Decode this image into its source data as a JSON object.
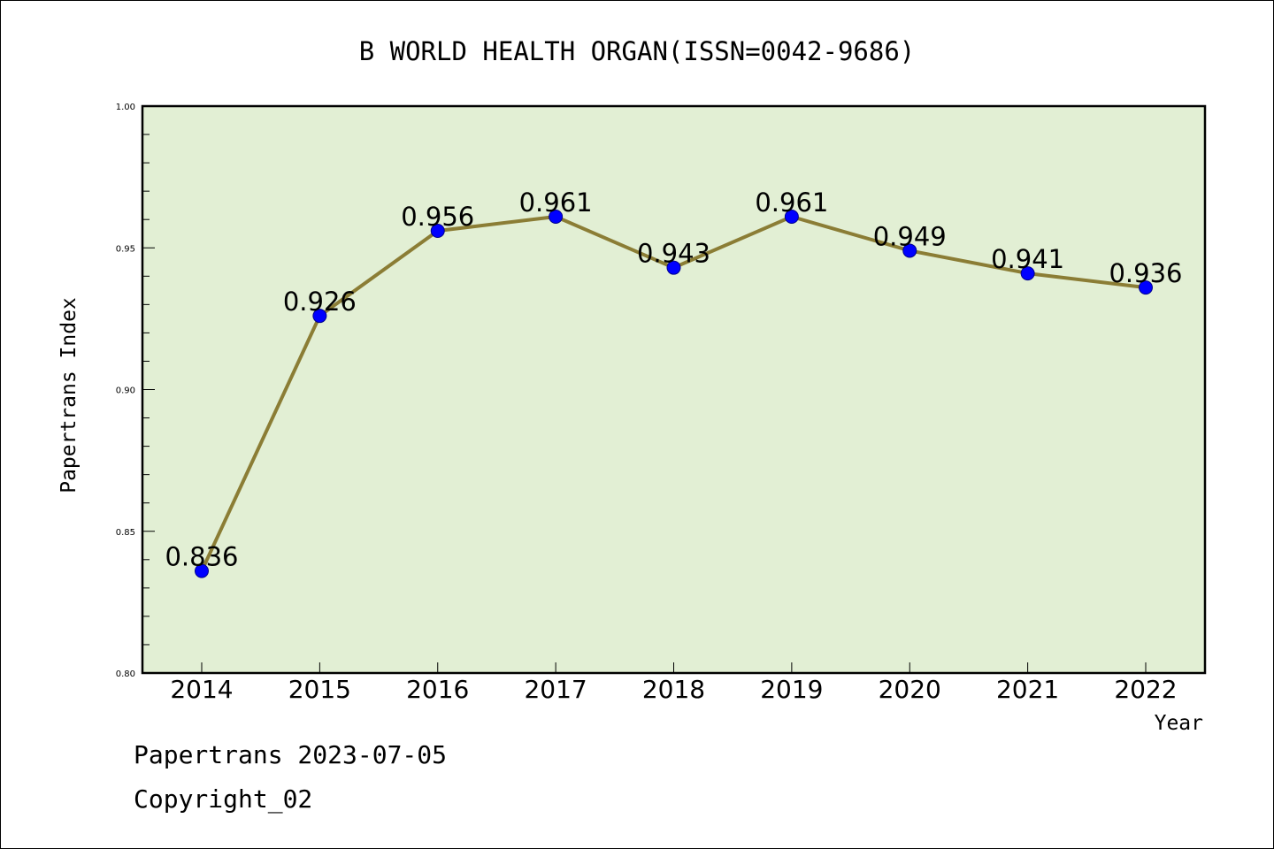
{
  "chart_data": {
    "type": "line",
    "title": "B WORLD HEALTH ORGAN(ISSN=0042-9686)",
    "xlabel": "Year",
    "ylabel": "Papertrans Index",
    "categories": [
      "2014",
      "2015",
      "2016",
      "2017",
      "2018",
      "2019",
      "2020",
      "2021",
      "2022"
    ],
    "series": [
      {
        "values": [
          0.836,
          0.926,
          0.956,
          0.961,
          0.943,
          0.961,
          0.949,
          0.941,
          0.936
        ]
      }
    ],
    "data_labels": [
      "0.836",
      "0.926",
      "0.956",
      "0.961",
      "0.943",
      "0.961",
      "0.949",
      "0.941",
      "0.936"
    ],
    "ylim": [
      0.8,
      1.0
    ],
    "yticks": [
      "0.80",
      "0.85",
      "0.90",
      "0.95",
      "1.00"
    ],
    "grid": false,
    "colors": {
      "plot_background": "#e2efd4",
      "line": "#8b7d35",
      "marker": "#0000ff"
    }
  },
  "footer": {
    "line1": "Papertrans 2023-07-05",
    "line2": "Copyright_02"
  }
}
